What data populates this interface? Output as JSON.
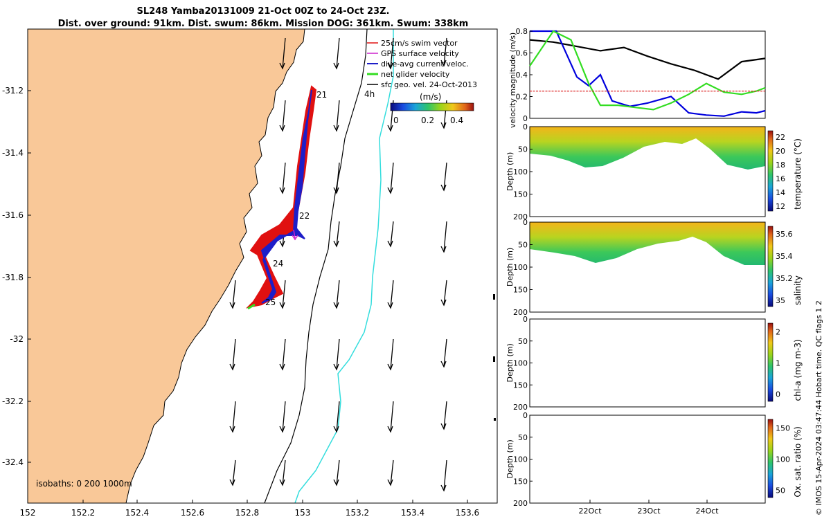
{
  "header": {
    "line1": "SL248 Yamba20131009 21-Oct 00Z to 24-Oct 23Z.",
    "line2": "Dist. over ground: 91km. Dist. swum: 86km. Mission DOG: 361km. Swum: 338km"
  },
  "footer": "© IMOS 15-Apr-2024 03:47:44 Hobart time. QC flags 1  2",
  "colors": {
    "land": "#f9c898",
    "track": "#1e1ec8",
    "swim_vector": "#e01010",
    "gps": "#cc22cc",
    "net": "#33dd22",
    "cyan_line": "#33dddd"
  },
  "map": {
    "legend": [
      "25cm/s swim vector",
      "GPS surface velocity",
      "dive-avg current veloc.",
      "net glider velocity",
      "sfc geo. vel. 24-Oct-2013"
    ],
    "time_label": "4h",
    "colorbar_title": "(m/s)",
    "colorbar_ticks": [
      "0",
      "0.2",
      "0.4"
    ],
    "isobaths_label": "isobaths: 0   200  1000m",
    "day_labels": [
      "21",
      "22",
      "24",
      "25"
    ],
    "x_ticks": [
      "152",
      "152.2",
      "152.4",
      "152.6",
      "152.8",
      "153",
      "153.2",
      "153.4",
      "153.6"
    ],
    "y_ticks": [
      "-31.2",
      "-31.4",
      "-31.6",
      "-31.8",
      "-32",
      "-32.2",
      "-32.4"
    ],
    "icons": [
      "arrow-icon"
    ]
  },
  "chart_data": [
    {
      "type": "line",
      "ylabel": "velocity magnitude (m/s)",
      "ylim": [
        0,
        0.8
      ],
      "y_ticks": [
        "0",
        "0.2",
        "0.4",
        "0.6",
        "0.8"
      ],
      "x_days": [
        21,
        25
      ],
      "series": [
        {
          "color": "#000000",
          "x": [
            21.0,
            21.4,
            21.8,
            22.2,
            22.6,
            23.0,
            23.4,
            23.8,
            24.2,
            24.6,
            25.0
          ],
          "values": [
            0.72,
            0.7,
            0.66,
            0.62,
            0.65,
            0.57,
            0.5,
            0.44,
            0.36,
            0.52,
            0.55
          ]
        },
        {
          "color": "#0000dd",
          "x": [
            21.0,
            21.25,
            21.45,
            21.6,
            21.8,
            22.0,
            22.2,
            22.4,
            22.7,
            23.0,
            23.4,
            23.7,
            24.0,
            24.3,
            24.6,
            24.85,
            25.0
          ],
          "values": [
            0.8,
            0.8,
            0.8,
            0.62,
            0.38,
            0.3,
            0.4,
            0.16,
            0.11,
            0.14,
            0.2,
            0.05,
            0.03,
            0.02,
            0.06,
            0.05,
            0.07
          ]
        },
        {
          "color": "#33dd22",
          "x": [
            21.0,
            21.4,
            21.7,
            22.0,
            22.2,
            22.5,
            22.8,
            23.1,
            23.4,
            23.7,
            24.0,
            24.3,
            24.6,
            24.85,
            25.0
          ],
          "values": [
            0.48,
            0.8,
            0.72,
            0.32,
            0.12,
            0.12,
            0.1,
            0.08,
            0.14,
            0.22,
            0.32,
            0.24,
            0.22,
            0.25,
            0.28
          ]
        },
        {
          "color": "#dd2222",
          "x": [
            21.0,
            25.0
          ],
          "values": [
            0.25,
            0.25
          ]
        }
      ]
    },
    {
      "type": "heatmap",
      "ylabel": "Depth (m)",
      "ylim": [
        0,
        200
      ],
      "y_ticks": [
        "0",
        "50",
        "100",
        "150",
        "200"
      ],
      "colorbar_label": "temperature (°C)",
      "colorbar_ticks": [
        "12",
        "14",
        "16",
        "18",
        "20",
        "22"
      ]
    },
    {
      "type": "heatmap",
      "ylabel": "Depth (m)",
      "ylim": [
        0,
        200
      ],
      "y_ticks": [
        "0",
        "50",
        "100",
        "150",
        "200"
      ],
      "colorbar_label": "salinity",
      "colorbar_ticks": [
        "35",
        "35.2",
        "35.4",
        "35.6"
      ]
    },
    {
      "type": "heatmap",
      "ylabel": "Depth (m)",
      "ylim": [
        0,
        200
      ],
      "y_ticks": [
        "0",
        "50",
        "100",
        "150",
        "200"
      ],
      "colorbar_label": "chl-a (mg m-3)",
      "colorbar_ticks": [
        "0",
        "1",
        "2"
      ]
    },
    {
      "type": "heatmap",
      "ylabel": "Depth (m)",
      "ylim": [
        0,
        200
      ],
      "y_ticks": [
        "0",
        "50",
        "100",
        "150",
        "200"
      ],
      "colorbar_label": "Ox. sat. ratio (%)",
      "colorbar_ticks": [
        "50",
        "100",
        "150"
      ],
      "x_ticks": [
        "22Oct",
        "23Oct",
        "24Oct"
      ]
    }
  ]
}
